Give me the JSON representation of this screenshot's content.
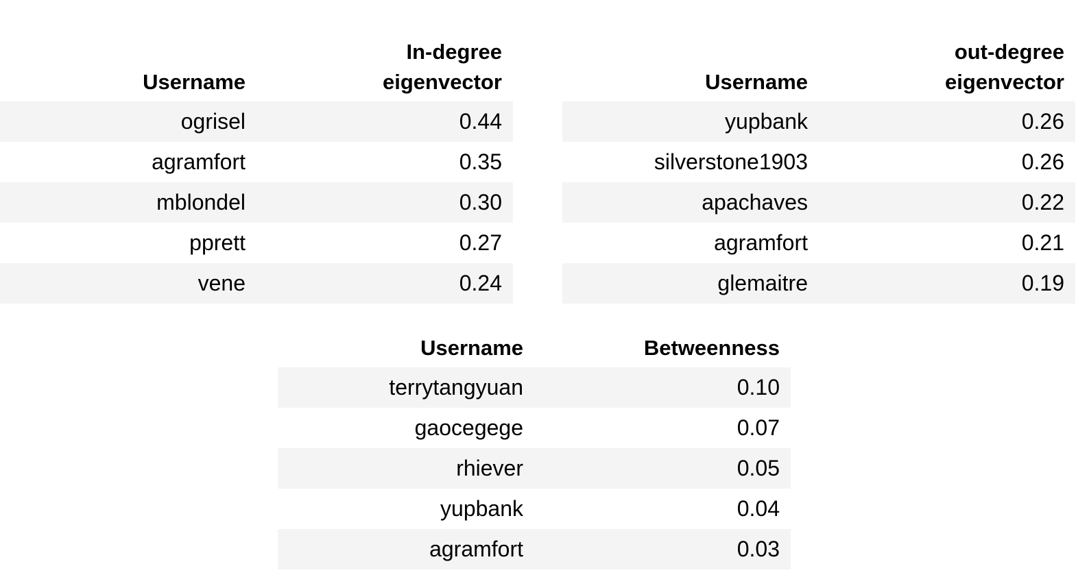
{
  "in_degree_table": {
    "col_username": "Username",
    "col_value_line1": "In-degree",
    "col_value_line2": "eigenvector",
    "rows": [
      {
        "username": "ogrisel",
        "value": "0.44"
      },
      {
        "username": "agramfort",
        "value": "0.35"
      },
      {
        "username": "mblondel",
        "value": "0.30"
      },
      {
        "username": "pprett",
        "value": "0.27"
      },
      {
        "username": "vene",
        "value": "0.24"
      }
    ]
  },
  "out_degree_table": {
    "col_username": "Username",
    "col_value_line1": "out-degree",
    "col_value_line2": "eigenvector",
    "rows": [
      {
        "username": "yupbank",
        "value": "0.26"
      },
      {
        "username": "silverstone1903",
        "value": "0.26"
      },
      {
        "username": "apachaves",
        "value": "0.22"
      },
      {
        "username": "agramfort",
        "value": "0.21"
      },
      {
        "username": "glemaitre",
        "value": "0.19"
      }
    ]
  },
  "betweenness_table": {
    "col_username": "Username",
    "col_value": "Betweenness",
    "rows": [
      {
        "username": "terrytangyuan",
        "value": "0.10"
      },
      {
        "username": "gaocegege",
        "value": "0.07"
      },
      {
        "username": "rhiever",
        "value": "0.05"
      },
      {
        "username": "yupbank",
        "value": "0.04"
      },
      {
        "username": "agramfort",
        "value": "0.03"
      }
    ]
  }
}
